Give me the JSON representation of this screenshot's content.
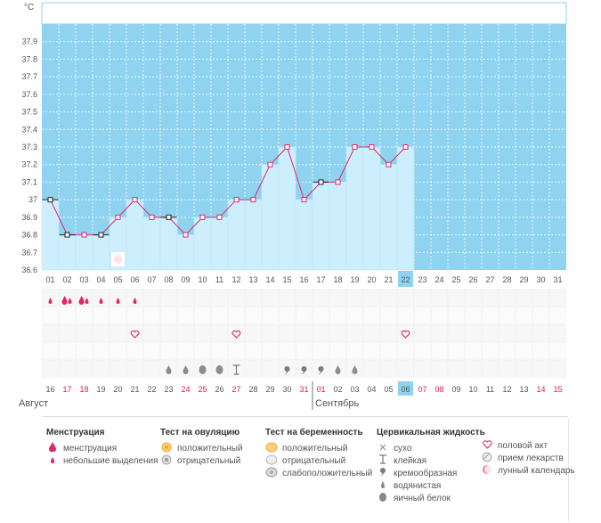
{
  "chart_data": {
    "type": "line",
    "unit_label": "°C",
    "yticks": [
      "36.6",
      "36.7",
      "36.8",
      "36.9",
      "37",
      "37.1",
      "37.2",
      "37.3",
      "37.4",
      "37.5",
      "37.6",
      "37.7",
      "37.8",
      "37.9"
    ],
    "ylim": [
      36.6,
      38.0
    ],
    "day_labels": [
      "01",
      "02",
      "03",
      "04",
      "05",
      "06",
      "07",
      "08",
      "09",
      "10",
      "11",
      "12",
      "13",
      "14",
      "15",
      "16",
      "17",
      "18",
      "19",
      "20",
      "21",
      "22",
      "23",
      "24",
      "25",
      "26",
      "27",
      "28",
      "29",
      "30",
      "31"
    ],
    "calendar_labels": [
      "16",
      "17",
      "18",
      "19",
      "20",
      "21",
      "22",
      "23",
      "24",
      "25",
      "26",
      "27",
      "28",
      "29",
      "30",
      "31",
      "01",
      "02",
      "03",
      "04",
      "05",
      "06",
      "07",
      "08",
      "09",
      "10",
      "11",
      "12",
      "13",
      "14",
      "15"
    ],
    "calendar_red_indices": [
      1,
      2,
      8,
      9,
      11,
      15,
      16,
      22,
      23,
      29,
      30
    ],
    "current_day_index": 21,
    "month_labels": [
      "Август",
      "Сентябрь"
    ],
    "month_break_index": 16,
    "series": [
      {
        "values": [
          37.0,
          36.8,
          36.8,
          36.8,
          36.9,
          37.0,
          36.9,
          36.9,
          36.8,
          36.9,
          36.9,
          37.0,
          37.0,
          37.2,
          37.3,
          37.0,
          37.1,
          37.1,
          37.3,
          37.3,
          37.2,
          37.3
        ],
        "marker_black_indices": [
          0,
          1,
          3,
          7,
          16
        ]
      }
    ],
    "menstruation": [
      "menstruation-drop-small",
      "menstruation-drop-large",
      "menstruation-drop-large",
      "menstruation-drop-small",
      "menstruation-drop-small",
      "menstruation-drop-small"
    ],
    "lunar_calendar_day_index": 4,
    "intercourse_indices": [
      5,
      11,
      21
    ],
    "cervical_fluid": [
      {
        "day_index": 7,
        "kind": "watery"
      },
      {
        "day_index": 8,
        "kind": "watery"
      },
      {
        "day_index": 9,
        "kind": "egg-white"
      },
      {
        "day_index": 10,
        "kind": "egg-white"
      },
      {
        "day_index": 11,
        "kind": "sticky"
      },
      {
        "day_index": 14,
        "kind": "creamy"
      },
      {
        "day_index": 15,
        "kind": "creamy"
      },
      {
        "day_index": 16,
        "kind": "creamy"
      },
      {
        "day_index": 17,
        "kind": "watery"
      },
      {
        "day_index": 18,
        "kind": "watery"
      }
    ],
    "colors": {
      "chart_bg": "#8fd3f0",
      "bar_fill": "#cdeefd",
      "bar_stroke": "#b3e3f8",
      "line": "#e2266b",
      "marker_pink": "#e2266b",
      "marker_black": "#222222",
      "current_day": "#8fd3f0",
      "red_text": "#d81b60",
      "grey_icon": "#8c8c8c"
    }
  },
  "legend": {
    "menstruation": {
      "title": "Менструация",
      "items": [
        {
          "icon": "menstruation-drop-large-icon",
          "label": "менструация"
        },
        {
          "icon": "menstruation-drop-small-icon",
          "label": "небольшие выделения"
        }
      ]
    },
    "ovulation_test": {
      "title": "Тест на овуляцию",
      "items": [
        {
          "icon": "ovulation-positive-icon",
          "label": "положительный"
        },
        {
          "icon": "ovulation-negative-icon",
          "label": "отрицательный"
        }
      ]
    },
    "pregnancy_test": {
      "title": "Тест на беременность",
      "items": [
        {
          "icon": "pregnancy-positive-icon",
          "label": "положительный"
        },
        {
          "icon": "pregnancy-negative-icon",
          "label": "отрицательный"
        },
        {
          "icon": "pregnancy-weak-icon",
          "label": "слабоположительный"
        }
      ]
    },
    "cervical_fluid": {
      "title": "Цервикальная жидкость",
      "items": [
        {
          "icon": "dry-icon",
          "label": "сухо"
        },
        {
          "icon": "sticky-icon",
          "label": "клейкая"
        },
        {
          "icon": "creamy-icon",
          "label": "кремообразная"
        },
        {
          "icon": "watery-icon",
          "label": "водянистая"
        },
        {
          "icon": "egg-white-icon",
          "label": "яичный белок"
        }
      ]
    },
    "other": {
      "items": [
        {
          "icon": "heart-icon",
          "label": "половой акт"
        },
        {
          "icon": "pill-icon",
          "label": "прием лекарств"
        },
        {
          "icon": "moon-icon",
          "label": "лунный календарь"
        }
      ]
    }
  }
}
